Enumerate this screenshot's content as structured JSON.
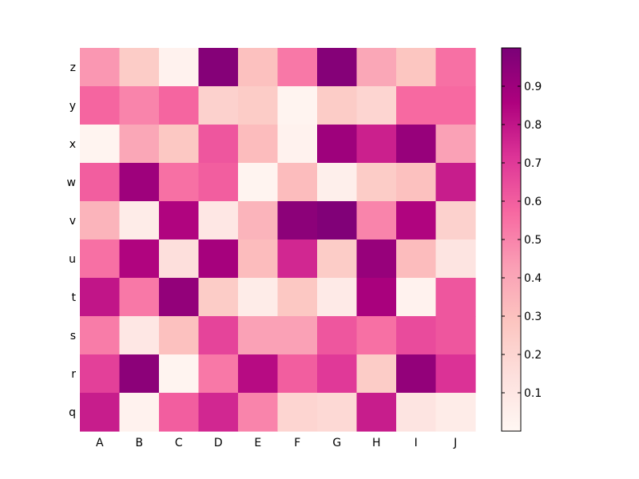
{
  "chart_data": {
    "type": "heatmap",
    "title": "",
    "xlabel": "",
    "ylabel": "",
    "x_categories": [
      "A",
      "B",
      "C",
      "D",
      "E",
      "F",
      "G",
      "H",
      "I",
      "J"
    ],
    "y_categories": [
      "z",
      "y",
      "x",
      "w",
      "v",
      "u",
      "t",
      "s",
      "r",
      "q"
    ],
    "values": [
      [
        0.45,
        0.25,
        0.03,
        0.97,
        0.3,
        0.53,
        0.97,
        0.4,
        0.28,
        0.55
      ],
      [
        0.58,
        0.5,
        0.58,
        0.22,
        0.25,
        0.02,
        0.25,
        0.2,
        0.57,
        0.57
      ],
      [
        0.02,
        0.4,
        0.27,
        0.62,
        0.32,
        0.03,
        0.9,
        0.77,
        0.92,
        0.42
      ],
      [
        0.6,
        0.9,
        0.55,
        0.6,
        0.02,
        0.32,
        0.05,
        0.25,
        0.3,
        0.78
      ],
      [
        0.35,
        0.07,
        0.85,
        0.1,
        0.35,
        0.95,
        0.98,
        0.5,
        0.85,
        0.22
      ],
      [
        0.55,
        0.85,
        0.15,
        0.88,
        0.32,
        0.75,
        0.25,
        0.92,
        0.32,
        0.12
      ],
      [
        0.8,
        0.53,
        0.93,
        0.25,
        0.07,
        0.27,
        0.08,
        0.87,
        0.03,
        0.62
      ],
      [
        0.52,
        0.1,
        0.3,
        0.67,
        0.42,
        0.42,
        0.62,
        0.55,
        0.65,
        0.62
      ],
      [
        0.68,
        0.95,
        0.02,
        0.53,
        0.83,
        0.6,
        0.7,
        0.25,
        0.93,
        0.72
      ],
      [
        0.78,
        0.03,
        0.6,
        0.75,
        0.5,
        0.2,
        0.18,
        0.78,
        0.12,
        0.07
      ]
    ],
    "colorscale": {
      "name": "RdPu",
      "stops": [
        "#fff7f3",
        "#fde0dd",
        "#fcc5c0",
        "#fa9fb5",
        "#f768a1",
        "#dd3497",
        "#ae017e",
        "#7a0177"
      ],
      "range": [
        0.0,
        1.0
      ]
    },
    "colorbar": {
      "ticks": [
        "0.1",
        "0.2",
        "0.3",
        "0.4",
        "0.5",
        "0.6",
        "0.7",
        "0.8",
        "0.9"
      ],
      "tick_values": [
        0.1,
        0.2,
        0.3,
        0.4,
        0.5,
        0.6,
        0.7,
        0.8,
        0.9
      ],
      "placement": "right"
    },
    "legend": "none",
    "grid": false
  }
}
